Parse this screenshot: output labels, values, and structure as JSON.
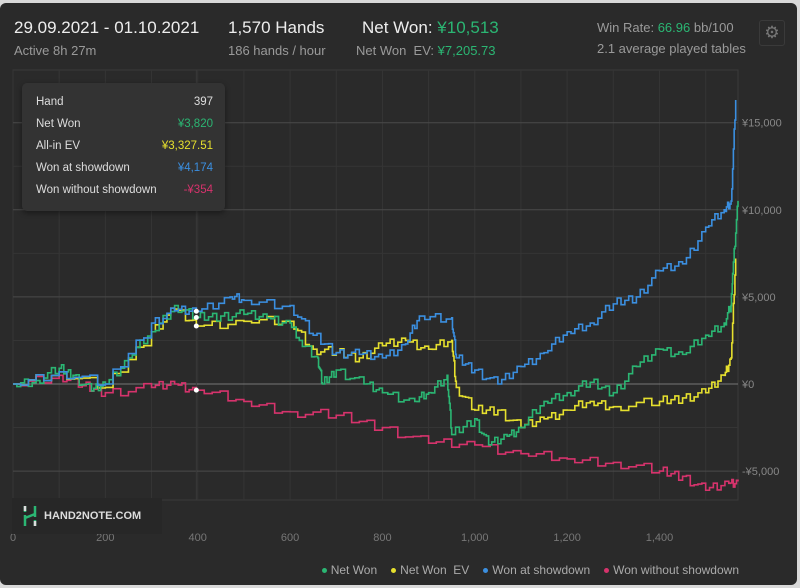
{
  "header": {
    "date_range": "29.09.2021 - 01.10.2021",
    "active": "Active 8h 27m",
    "hands": "1,570 Hands",
    "hands_per_hour": "186 hands / hour",
    "net_won_label": "Net Won: ",
    "net_won_value": "¥10,513",
    "net_won_ev_label": "Net Won  EV: ",
    "net_won_ev_value": "¥7,205.73",
    "win_rate_label": "Win Rate: ",
    "win_rate_value": "66.96",
    "win_rate_unit": " bb/100",
    "avg_tables": "2.1 average played tables",
    "settings_icon": "gear-icon"
  },
  "tooltip": {
    "rows": [
      {
        "label": "Hand",
        "value": "397",
        "color": "#dddddd"
      },
      {
        "label": "Net Won",
        "value": "¥3,820",
        "color": "#2bb673"
      },
      {
        "label": "All-in EV",
        "value": "¥3,327.51",
        "color": "#e6e02e"
      },
      {
        "label": "Won at showdown",
        "value": "¥4,174",
        "color": "#3b8fe0"
      },
      {
        "label": "Won without showdown",
        "value": "-¥354",
        "color": "#d6336c"
      }
    ]
  },
  "logo": {
    "text": "HAND2NOTE.COM"
  },
  "chart_data": {
    "type": "line",
    "xlim": [
      0,
      1570
    ],
    "ylim": [
      -6500,
      17000
    ],
    "grid": true,
    "legend": "bottom-right",
    "x_ticks": [
      0,
      200,
      400,
      600,
      800,
      1000,
      1200,
      1400
    ],
    "x_tick_labels": [
      "0",
      "200",
      "400",
      "600",
      "800",
      "1,000",
      "1,200",
      "1,400"
    ],
    "y_ticks": [
      -5000,
      0,
      5000,
      10000,
      15000
    ],
    "y_tick_labels": [
      "-¥5,000",
      "¥0",
      "¥5,000",
      "¥10,000",
      "¥15,000"
    ],
    "highlight_x": 397,
    "series": [
      {
        "name": "Net Won",
        "color": "#2bb673",
        "points": [
          [
            0,
            0
          ],
          [
            50,
            200
          ],
          [
            100,
            900
          ],
          [
            130,
            500
          ],
          [
            170,
            -400
          ],
          [
            200,
            0
          ],
          [
            250,
            1500
          ],
          [
            300,
            3000
          ],
          [
            350,
            4500
          ],
          [
            397,
            3820
          ],
          [
            450,
            3900
          ],
          [
            500,
            4000
          ],
          [
            550,
            3800
          ],
          [
            600,
            3500
          ],
          [
            620,
            2500
          ],
          [
            660,
            1500
          ],
          [
            670,
            0
          ],
          [
            700,
            800
          ],
          [
            760,
            0
          ],
          [
            800,
            -500
          ],
          [
            870,
            -1000
          ],
          [
            900,
            -500
          ],
          [
            940,
            500
          ],
          [
            950,
            -2900
          ],
          [
            1000,
            -2000
          ],
          [
            1030,
            -3500
          ],
          [
            1070,
            -3000
          ],
          [
            1100,
            -2500
          ],
          [
            1150,
            -1000
          ],
          [
            1200,
            -500
          ],
          [
            1250,
            100
          ],
          [
            1300,
            -500
          ],
          [
            1350,
            1000
          ],
          [
            1400,
            2000
          ],
          [
            1450,
            1700
          ],
          [
            1500,
            2800
          ],
          [
            1540,
            3500
          ],
          [
            1555,
            4500
          ],
          [
            1560,
            7000
          ],
          [
            1570,
            10513
          ]
        ]
      },
      {
        "name": "Net Won  EV",
        "color": "#e6e02e",
        "points": [
          [
            0,
            0
          ],
          [
            100,
            700
          ],
          [
            200,
            -200
          ],
          [
            300,
            3000
          ],
          [
            350,
            4300
          ],
          [
            397,
            3327
          ],
          [
            500,
            3600
          ],
          [
            600,
            3600
          ],
          [
            650,
            2000
          ],
          [
            700,
            1800
          ],
          [
            750,
            1500
          ],
          [
            800,
            2200
          ],
          [
            850,
            2500
          ],
          [
            900,
            2000
          ],
          [
            950,
            2500
          ],
          [
            960,
            -200
          ],
          [
            1000,
            -1500
          ],
          [
            1050,
            -1500
          ],
          [
            1100,
            -2500
          ],
          [
            1150,
            -2000
          ],
          [
            1200,
            -1500
          ],
          [
            1250,
            -1000
          ],
          [
            1300,
            -1300
          ],
          [
            1400,
            -1000
          ],
          [
            1450,
            -800
          ],
          [
            1500,
            -500
          ],
          [
            1540,
            500
          ],
          [
            1555,
            1500
          ],
          [
            1565,
            7205
          ]
        ]
      },
      {
        "name": "Won at showdown",
        "color": "#3b8fe0",
        "points": [
          [
            0,
            0
          ],
          [
            100,
            700
          ],
          [
            200,
            0
          ],
          [
            300,
            3500
          ],
          [
            350,
            4200
          ],
          [
            397,
            4174
          ],
          [
            470,
            5000
          ],
          [
            500,
            4800
          ],
          [
            600,
            4500
          ],
          [
            650,
            2800
          ],
          [
            700,
            1800
          ],
          [
            750,
            1700
          ],
          [
            800,
            1500
          ],
          [
            850,
            2300
          ],
          [
            880,
            3900
          ],
          [
            950,
            3800
          ],
          [
            960,
            1500
          ],
          [
            1000,
            800
          ],
          [
            1050,
            0
          ],
          [
            1100,
            1000
          ],
          [
            1150,
            1800
          ],
          [
            1200,
            3000
          ],
          [
            1250,
            3500
          ],
          [
            1300,
            4600
          ],
          [
            1350,
            5000
          ],
          [
            1400,
            6500
          ],
          [
            1450,
            6900
          ],
          [
            1500,
            9000
          ],
          [
            1540,
            10000
          ],
          [
            1555,
            10500
          ],
          [
            1565,
            16300
          ]
        ]
      },
      {
        "name": "Won without showdown",
        "color": "#d6336c",
        "points": [
          [
            0,
            0
          ],
          [
            100,
            500
          ],
          [
            150,
            -100
          ],
          [
            200,
            -500
          ],
          [
            300,
            -200
          ],
          [
            350,
            0
          ],
          [
            397,
            -354
          ],
          [
            500,
            -1000
          ],
          [
            600,
            -1600
          ],
          [
            700,
            -1800
          ],
          [
            800,
            -2500
          ],
          [
            900,
            -3400
          ],
          [
            1000,
            -3500
          ],
          [
            1100,
            -4000
          ],
          [
            1200,
            -4300
          ],
          [
            1300,
            -4500
          ],
          [
            1400,
            -5000
          ],
          [
            1450,
            -5300
          ],
          [
            1500,
            -6100
          ],
          [
            1550,
            -5700
          ],
          [
            1570,
            -5600
          ]
        ]
      }
    ]
  }
}
